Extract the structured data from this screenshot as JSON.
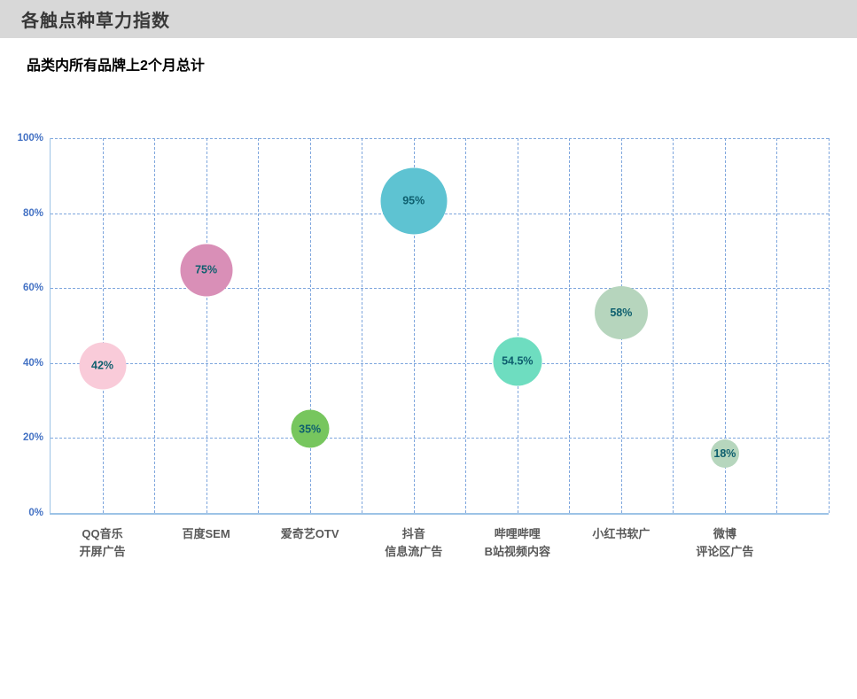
{
  "header": {
    "title": "各触点种草力指数"
  },
  "subtitle": "品类内所有品牌上2个月总计",
  "colors": {
    "header_bg": "#d8d8d8",
    "header_text": "#383838",
    "axis_line": "#9dc3e6",
    "gridline": "#7ea6dd",
    "y_tick_text": "#4472c4",
    "category_text": "#595959",
    "bubble_value_text": "#0e5f6e"
  },
  "chart_data": {
    "type": "scatter",
    "subtype": "bubble",
    "title": "各触点种草力指数",
    "subtitle": "品类内所有品牌上2个月总计",
    "ylim": [
      0,
      100
    ],
    "y_ticks": [
      {
        "value": 0,
        "label": "0%"
      },
      {
        "value": 20,
        "label": "20%"
      },
      {
        "value": 40,
        "label": "40%"
      },
      {
        "value": 60,
        "label": "60%"
      },
      {
        "value": 80,
        "label": "80%"
      },
      {
        "value": 100,
        "label": "100%"
      }
    ],
    "grid": true,
    "x_divisions": 15,
    "categories": [
      "QQ音乐\n开屏广告",
      "百度SEM",
      "爱奇艺OTV",
      "抖音\n信息流广告",
      "哔哩哔哩\nB站视频内容",
      "小红书软广",
      "微博\n评论区广告"
    ],
    "series": [
      {
        "name": "种草力指数",
        "points": [
          {
            "category_index": 0,
            "label": "42%",
            "value": 42,
            "y_plotted_pct": 39.3,
            "radius_px": 26.5,
            "color": "#f9cbd9"
          },
          {
            "category_index": 1,
            "label": "75%",
            "value": 75,
            "y_plotted_pct": 64.8,
            "radius_px": 29.5,
            "color": "#d98fb7"
          },
          {
            "category_index": 2,
            "label": "35%",
            "value": 35,
            "y_plotted_pct": 22.4,
            "radius_px": 21.5,
            "color": "#77c65e"
          },
          {
            "category_index": 3,
            "label": "95%",
            "value": 95,
            "y_plotted_pct": 83.3,
            "radius_px": 37.5,
            "color": "#5ec3d2"
          },
          {
            "category_index": 4,
            "label": "54.5%",
            "value": 54.5,
            "y_plotted_pct": 40.5,
            "radius_px": 27.5,
            "color": "#6eddc0"
          },
          {
            "category_index": 5,
            "label": "58%",
            "value": 58,
            "y_plotted_pct": 53.4,
            "radius_px": 30,
            "color": "#b6d5bd"
          },
          {
            "category_index": 6,
            "label": "18%",
            "value": 18,
            "y_plotted_pct": 15.9,
            "radius_px": 16,
            "color": "#b6d6bd"
          }
        ]
      }
    ]
  }
}
